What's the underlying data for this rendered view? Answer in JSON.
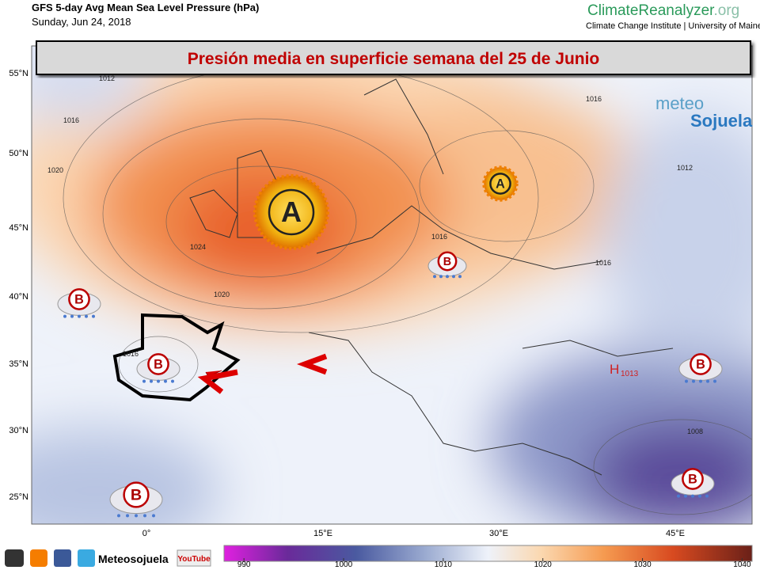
{
  "header": {
    "title": "GFS 5-day Avg Mean Sea Level Pressure (hPa)",
    "date": "Sunday, Jun 24, 2018",
    "brand": "ClimateReanalyzer",
    "brand_suffix": ".org",
    "affiliation": "Climate Change Institute | University of Maine",
    "banner": "Presión media en superficie semana del 25 de Junio"
  },
  "map": {
    "lat_labels": [
      "55°N",
      "50°N",
      "45°N",
      "40°N",
      "35°N",
      "30°N",
      "25°N"
    ],
    "lon_labels": [
      "0°",
      "15°E",
      "30°E",
      "45°E"
    ],
    "contour_labels": [
      "1012",
      "1016",
      "1020",
      "1024",
      "1020",
      "1016",
      "1016",
      "1016",
      "1012",
      "1016",
      "1008"
    ],
    "centers": [
      {
        "symbol": "A"
      },
      {
        "symbol": "A"
      },
      {
        "symbol": "B"
      },
      {
        "symbol": "B"
      },
      {
        "symbol": "B"
      },
      {
        "symbol": "B"
      },
      {
        "symbol": "B"
      },
      {
        "symbol": "B"
      }
    ],
    "pressure_marks": [
      {
        "letter": "H",
        "value": "1013"
      }
    ],
    "watermark": {
      "top": "meteo",
      "bottom": "Sojuela"
    }
  },
  "colorbar": {
    "range": [
      988,
      1041
    ],
    "ticks": [
      990,
      1000,
      1010,
      1020,
      1030,
      1040
    ]
  },
  "footer": {
    "channel": "Meteosojuela",
    "youtube": "YouTube"
  }
}
